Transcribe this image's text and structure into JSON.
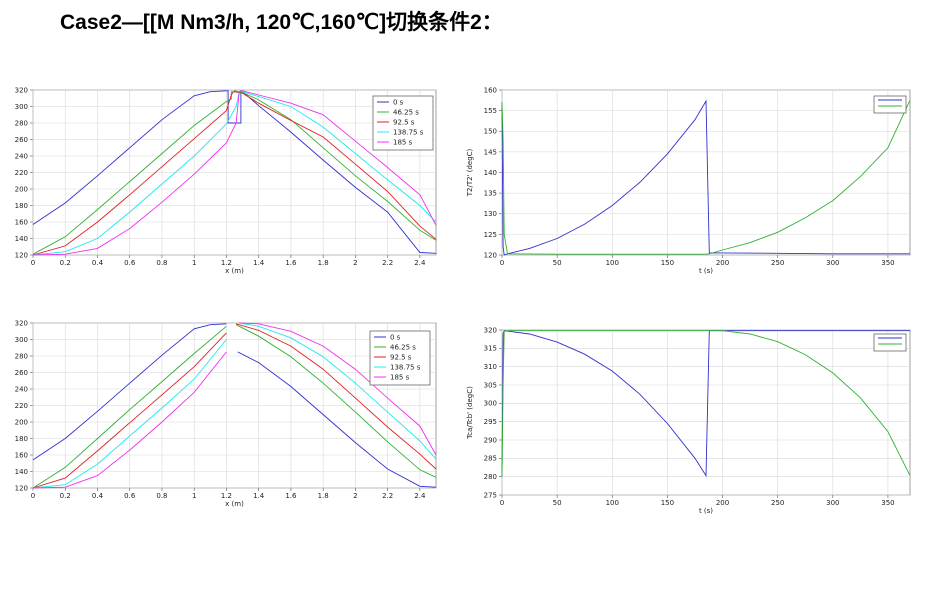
{
  "page": {
    "title": "Case2—[[M Nm3/h, 120℃,160℃]切换条件2："
  },
  "colors": {
    "blue": "#3030d0",
    "green": "#30b030",
    "red": "#e02020",
    "cyan": "#20e8f0",
    "magenta": "#f030f0",
    "grid": "#d8d8d8"
  },
  "chart_data": [
    {
      "id": "profile-top",
      "type": "line",
      "xlabel": "x (m)",
      "ylabel": "",
      "xlim": [
        0,
        2.5
      ],
      "ylim": [
        120,
        320
      ],
      "xticks": [
        "0",
        "0.2",
        "0.4",
        "0.6",
        "0.8",
        "1",
        "1.2",
        "1.4",
        "1.6",
        "1.8",
        "2",
        "2.2",
        "2.4"
      ],
      "yticks": [
        "120",
        "140",
        "160",
        "180",
        "200",
        "220",
        "240",
        "260",
        "280",
        "300",
        "320"
      ],
      "legend": {
        "position": "top-right",
        "entries": [
          "0 s",
          "46.25 s",
          "92.5 s",
          "138.75 s",
          "185 s"
        ]
      },
      "series": [
        {
          "name": "0 s",
          "color": "#3030d0",
          "x": [
            0,
            0.2,
            0.4,
            0.6,
            0.8,
            1.0,
            1.1,
            1.2,
            1.21,
            1.21,
            1.29,
            1.29,
            1.3,
            1.4,
            1.6,
            1.8,
            2.0,
            2.2,
            2.4,
            2.5
          ],
          "y": [
            157,
            183,
            216,
            250,
            284,
            313,
            318,
            319,
            319,
            280,
            280,
            319,
            318,
            301,
            269,
            235,
            202,
            172,
            123,
            122
          ]
        },
        {
          "name": "46.25 s",
          "color": "#30b030",
          "x": [
            0,
            0.2,
            0.4,
            0.6,
            0.8,
            1.0,
            1.2,
            1.23,
            1.23,
            1.25,
            1.25,
            1.3,
            1.4,
            1.6,
            1.8,
            2.0,
            2.2,
            2.4,
            2.5
          ],
          "y": [
            121,
            142,
            175,
            209,
            243,
            277,
            306,
            309,
            318,
            318,
            319,
            317,
            308,
            284,
            250,
            216,
            185,
            150,
            138
          ]
        },
        {
          "name": "92.5 s",
          "color": "#e02020",
          "x": [
            0,
            0.2,
            0.4,
            0.6,
            0.8,
            1.0,
            1.2,
            1.23,
            1.24,
            1.25,
            1.3,
            1.4,
            1.6,
            1.8,
            2.0,
            2.2,
            2.4,
            2.5
          ],
          "y": [
            120,
            131,
            160,
            193,
            227,
            261,
            295,
            314,
            317,
            318,
            316,
            304,
            283,
            263,
            230,
            197,
            155,
            139
          ]
        },
        {
          "name": "138.75 s",
          "color": "#20e8f0",
          "x": [
            0,
            0.2,
            0.4,
            0.6,
            0.8,
            1.0,
            1.2,
            1.26,
            1.28,
            1.3,
            1.4,
            1.6,
            1.8,
            2.0,
            2.2,
            2.4,
            2.5
          ],
          "y": [
            120,
            124,
            140,
            172,
            206,
            240,
            279,
            300,
            318,
            318,
            312,
            300,
            275,
            243,
            211,
            180,
            160
          ]
        },
        {
          "name": "185 s",
          "color": "#f030f0",
          "x": [
            0,
            0.2,
            0.4,
            0.6,
            0.8,
            1.0,
            1.2,
            1.26,
            1.28,
            1.3,
            1.4,
            1.6,
            1.8,
            2.0,
            2.2,
            2.4,
            2.5
          ],
          "y": [
            120,
            121,
            128,
            152,
            184,
            218,
            256,
            280,
            318,
            319,
            314,
            304,
            290,
            258,
            226,
            193,
            156
          ]
        }
      ]
    },
    {
      "id": "t2-top",
      "type": "line",
      "xlabel": "t (s)",
      "ylabel": "T2/T2' (degC)",
      "xlim": [
        0,
        370
      ],
      "ylim": [
        120,
        160
      ],
      "xticks": [
        "0",
        "50",
        "100",
        "150",
        "200",
        "250",
        "300",
        "350"
      ],
      "yticks": [
        "120",
        "125",
        "130",
        "135",
        "140",
        "145",
        "150",
        "155",
        "160"
      ],
      "legend": {
        "position": "top-right",
        "entries": [
          "",
          ""
        ]
      },
      "series": [
        {
          "color": "#3030d0",
          "x": [
            0,
            1,
            2,
            5,
            25,
            50,
            75,
            100,
            125,
            150,
            175,
            185,
            188,
            200,
            250,
            300,
            350,
            370
          ],
          "y": [
            157,
            122,
            120,
            120.3,
            121.6,
            124,
            127.5,
            132,
            137.6,
            144.5,
            152.8,
            157.3,
            120.5,
            120.5,
            120.4,
            120.3,
            120.3,
            120.3
          ]
        },
        {
          "color": "#30b030",
          "x": [
            0,
            1,
            2,
            5,
            50,
            100,
            150,
            185,
            188,
            200,
            225,
            250,
            275,
            300,
            325,
            350,
            370
          ],
          "y": [
            157,
            148,
            125,
            120.3,
            120.2,
            120.2,
            120.2,
            120.2,
            120.3,
            121.2,
            123,
            125.5,
            129,
            133.2,
            139,
            146,
            157.5
          ]
        }
      ]
    },
    {
      "id": "profile-bottom",
      "type": "line",
      "xlabel": "x (m)",
      "ylabel": "",
      "xlim": [
        0,
        2.5
      ],
      "ylim": [
        120,
        320
      ],
      "xticks": [
        "0",
        "0.2",
        "0.4",
        "0.6",
        "0.8",
        "1",
        "1.2",
        "1.4",
        "1.6",
        "1.8",
        "2",
        "2.2",
        "2.4"
      ],
      "yticks": [
        "120",
        "140",
        "160",
        "180",
        "200",
        "220",
        "240",
        "260",
        "280",
        "300",
        "320"
      ],
      "legend": {
        "position": "top-right",
        "entries": [
          "0 s",
          "46.25 s",
          "92.5 s",
          "138.75 s",
          "185 s"
        ]
      },
      "series": [
        {
          "name": "0 s",
          "color": "#3030d0",
          "x": [
            0,
            0.2,
            0.4,
            0.6,
            0.8,
            1.0,
            1.1,
            1.2
          ],
          "y": [
            154,
            180,
            213,
            247,
            281,
            313,
            318,
            319
          ]
        },
        {
          "name": "0 s",
          "color": "#3030d0",
          "x": [
            1.27,
            1.4,
            1.6,
            1.8,
            2.0,
            2.2,
            2.4,
            2.5
          ],
          "y": [
            285,
            272,
            243,
            209,
            175,
            143,
            122,
            121
          ]
        },
        {
          "name": "46.25 s",
          "color": "#30b030",
          "x": [
            0,
            0.2,
            0.4,
            0.6,
            0.8,
            1.0,
            1.2
          ],
          "y": [
            120,
            145,
            180,
            215,
            249,
            283,
            316
          ]
        },
        {
          "name": "46.25 s",
          "color": "#30b030",
          "x": [
            1.26,
            1.4,
            1.6,
            1.8,
            2.0,
            2.2,
            2.4,
            2.5
          ],
          "y": [
            318,
            304,
            279,
            247,
            212,
            176,
            142,
            133
          ]
        },
        {
          "name": "92.5 s",
          "color": "#e02020",
          "x": [
            0,
            0.2,
            0.4,
            0.6,
            0.8,
            1.0,
            1.2
          ],
          "y": [
            120,
            132,
            165,
            199,
            233,
            267,
            308
          ]
        },
        {
          "name": "92.5 s",
          "color": "#e02020",
          "x": [
            1.26,
            1.4,
            1.6,
            1.8,
            2.0,
            2.2,
            2.4,
            2.5
          ],
          "y": [
            319,
            311,
            292,
            264,
            229,
            194,
            161,
            143
          ]
        },
        {
          "name": "138.75 s",
          "color": "#20e8f0",
          "x": [
            0,
            0.2,
            0.4,
            0.6,
            0.8,
            1.0,
            1.2
          ],
          "y": [
            120,
            124,
            149,
            183,
            217,
            252,
            300
          ]
        },
        {
          "name": "138.75 s",
          "color": "#20e8f0",
          "x": [
            1.28,
            1.4,
            1.6,
            1.8,
            2.0,
            2.2,
            2.4,
            2.5
          ],
          "y": [
            320,
            316,
            302,
            279,
            247,
            212,
            177,
            155
          ]
        },
        {
          "name": "185 s",
          "color": "#f030f0",
          "x": [
            0,
            0.2,
            0.4,
            0.6,
            0.8,
            1.0,
            1.2
          ],
          "y": [
            120,
            121,
            135,
            166,
            200,
            236,
            285
          ]
        },
        {
          "name": "185 s",
          "color": "#f030f0",
          "x": [
            1.28,
            1.4,
            1.6,
            1.8,
            2.0,
            2.2,
            2.4,
            2.5
          ],
          "y": [
            320,
            319,
            310,
            292,
            264,
            229,
            195,
            160
          ]
        }
      ]
    },
    {
      "id": "tc-bottom",
      "type": "line",
      "xlabel": "t (s)",
      "ylabel": "Tca/Tcb' (degC)",
      "xlim": [
        0,
        370
      ],
      "ylim": [
        275,
        320
      ],
      "xticks": [
        "0",
        "50",
        "100",
        "150",
        "200",
        "250",
        "300",
        "350"
      ],
      "yticks": [
        "275",
        "280",
        "285",
        "290",
        "295",
        "300",
        "305",
        "310",
        "315",
        "320"
      ],
      "legend": {
        "position": "top-right",
        "entries": [
          "",
          ""
        ]
      },
      "series": [
        {
          "color": "#3030d0",
          "x": [
            0,
            1,
            2,
            25,
            50,
            75,
            100,
            125,
            150,
            175,
            185,
            188,
            200,
            250,
            300,
            350,
            370
          ],
          "y": [
            280,
            319,
            319.8,
            318.9,
            316.7,
            313.4,
            308.8,
            302.5,
            294.5,
            285,
            280.3,
            319.8,
            319.8,
            319.8,
            319.8,
            319.8,
            319.8
          ]
        },
        {
          "color": "#30b030",
          "x": [
            0,
            1,
            2,
            5,
            50,
            100,
            150,
            185,
            188,
            200,
            225,
            250,
            275,
            300,
            325,
            350,
            370
          ],
          "y": [
            280,
            305,
            319.6,
            319.8,
            319.8,
            319.8,
            319.8,
            319.8,
            319.8,
            319.8,
            318.9,
            316.8,
            313.3,
            308.3,
            301.5,
            292.3,
            280.3
          ]
        }
      ]
    }
  ]
}
